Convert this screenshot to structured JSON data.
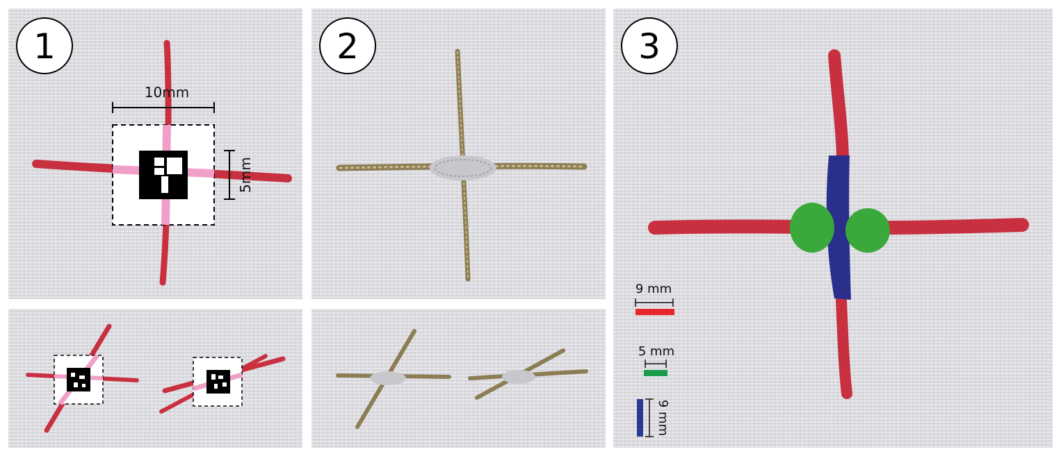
{
  "panels": {
    "p1": {
      "number": "1",
      "width_label": "10mm",
      "height_label": "5mm"
    },
    "p2": {
      "number": "2"
    },
    "p3": {
      "number": "3",
      "legend": [
        {
          "label": "9 mm",
          "color": "#e8242c"
        },
        {
          "label": "5 mm",
          "color": "#1a9c4a"
        },
        {
          "label": "9 mm",
          "color": "#2b3a8f"
        }
      ]
    }
  },
  "colors": {
    "fabric": "#dcdce0",
    "red_thread": "#c8303f",
    "pink_thread": "#f0a0c8",
    "gold_thread": "#8c7d55",
    "silver_thread": "#c8c8cc",
    "green_thread": "#3aa83a",
    "blue_thread": "#2b2f8c"
  }
}
